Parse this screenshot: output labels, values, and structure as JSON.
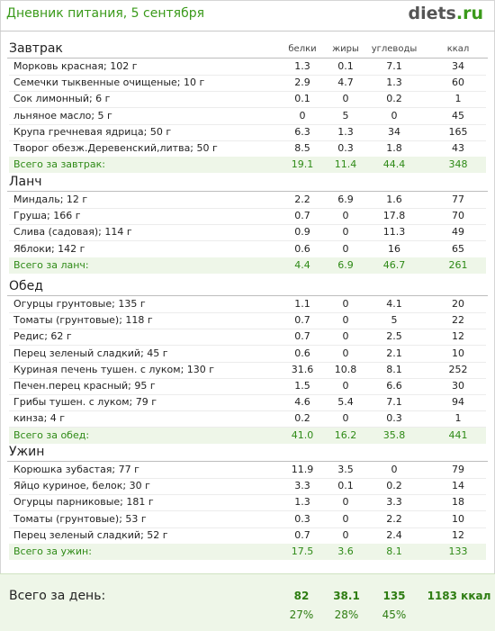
{
  "header": {
    "title": "Дневник питания, 5 сентября",
    "logo_main": "diets",
    "logo_suffix": ".ru"
  },
  "columns": [
    "белки",
    "жиры",
    "углеводы",
    "ккал"
  ],
  "meals": [
    {
      "name": "Завтрак",
      "rows": [
        [
          "Морковь красная; 102 г",
          "1.3",
          "0.1",
          "7.1",
          "34"
        ],
        [
          "Семечки тыквенные очищеные; 10 г",
          "2.9",
          "4.7",
          "1.3",
          "60"
        ],
        [
          "Сок лимонный; 6 г",
          "0.1",
          "0",
          "0.2",
          "1"
        ],
        [
          "льняное масло; 5 г",
          "0",
          "5",
          "0",
          "45"
        ],
        [
          "Крупа гречневая ядрица; 50 г",
          "6.3",
          "1.3",
          "34",
          "165"
        ],
        [
          "Творог обезж.Деревенский,литва; 50 г",
          "8.5",
          "0.3",
          "1.8",
          "43"
        ]
      ],
      "total": [
        "Всего за завтрак:",
        "19.1",
        "11.4",
        "44.4",
        "348"
      ]
    },
    {
      "name": "Ланч",
      "rows": [
        [
          "Миндаль; 12 г",
          "2.2",
          "6.9",
          "1.6",
          "77"
        ],
        [
          "Груша; 166 г",
          "0.7",
          "0",
          "17.8",
          "70"
        ],
        [
          "Слива (садовая); 114 г",
          "0.9",
          "0",
          "11.3",
          "49"
        ],
        [
          "Яблоки; 142 г",
          "0.6",
          "0",
          "16",
          "65"
        ]
      ],
      "total": [
        "Всего за ланч:",
        "4.4",
        "6.9",
        "46.7",
        "261"
      ]
    },
    {
      "name": "Обед",
      "rows": [
        [
          "Огурцы грунтовые; 135 г",
          "1.1",
          "0",
          "4.1",
          "20"
        ],
        [
          "Томаты (грунтовые); 118 г",
          "0.7",
          "0",
          "5",
          "22"
        ],
        [
          "Редис; 62 г",
          "0.7",
          "0",
          "2.5",
          "12"
        ],
        [
          "Перец зеленый сладкий; 45 г",
          "0.6",
          "0",
          "2.1",
          "10"
        ],
        [
          "Куриная печень тушен. с луком; 130 г",
          "31.6",
          "10.8",
          "8.1",
          "252"
        ],
        [
          "Печен.перец красный; 95 г",
          "1.5",
          "0",
          "6.6",
          "30"
        ],
        [
          "Грибы тушен. с луком; 79 г",
          "4.6",
          "5.4",
          "7.1",
          "94"
        ],
        [
          "кинза; 4 г",
          "0.2",
          "0",
          "0.3",
          "1"
        ]
      ],
      "total": [
        "Всего за обед:",
        "41.0",
        "16.2",
        "35.8",
        "441"
      ]
    },
    {
      "name": "Ужин",
      "rows": [
        [
          "Корюшка зубастая; 77 г",
          "11.9",
          "3.5",
          "0",
          "79"
        ],
        [
          "Яйцо куриное, белок; 30 г",
          "3.3",
          "0.1",
          "0.2",
          "14"
        ],
        [
          "Огурцы парниковые; 181 г",
          "1.3",
          "0",
          "3.3",
          "18"
        ],
        [
          "Томаты (грунтовые); 53 г",
          "0.3",
          "0",
          "2.2",
          "10"
        ],
        [
          "Перец зеленый сладкий; 52 г",
          "0.7",
          "0",
          "2.4",
          "12"
        ]
      ],
      "total": [
        "Всего за ужин:",
        "17.5",
        "3.6",
        "8.1",
        "133"
      ]
    }
  ],
  "day_total": {
    "label": "Всего за день:",
    "values": [
      "82",
      "38.1",
      "135",
      "1183 ккал"
    ],
    "percents": [
      "27%",
      "28%",
      "45%"
    ]
  }
}
